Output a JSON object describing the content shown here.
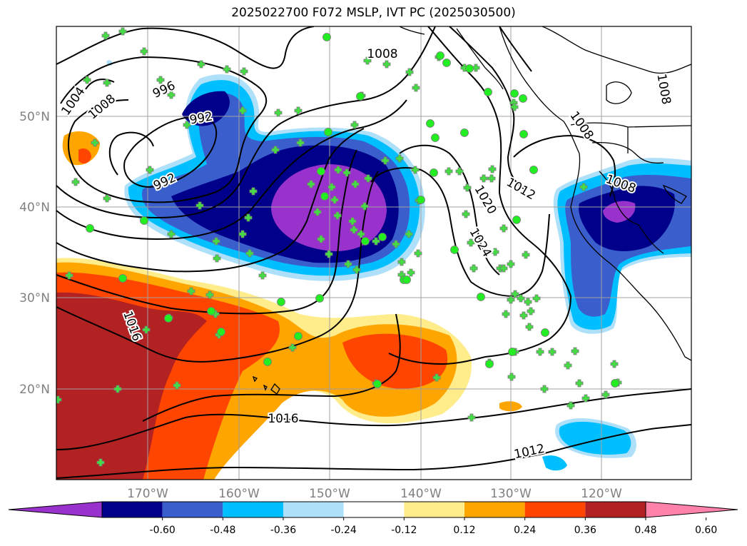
{
  "title": "2025022700 F072 MSLP, IVT PC (2025030500)",
  "map": {
    "lon_labels": [
      "170°W",
      "160°W",
      "150°W",
      "140°W",
      "130°W",
      "120°W"
    ],
    "lat_labels": [
      "50°N",
      "40°N",
      "30°N",
      "20°N"
    ],
    "tick_label_color": "#808080",
    "grid_color": "#a0a0a0"
  },
  "isobars": {
    "labels": [
      {
        "text": "1004"
      },
      {
        "text": "1008"
      },
      {
        "text": "996"
      },
      {
        "text": "992"
      },
      {
        "text": "992"
      },
      {
        "text": "1008"
      },
      {
        "text": "1008"
      },
      {
        "text": "1008"
      },
      {
        "text": "1012"
      },
      {
        "text": "1020"
      },
      {
        "text": "1024"
      },
      {
        "text": "1016"
      },
      {
        "text": "1016"
      },
      {
        "text": "1012"
      },
      {
        "text": "1008"
      }
    ]
  },
  "colorbar": {
    "tick_labels": [
      "-0.60",
      "-0.48",
      "-0.36",
      "-0.24",
      "-0.12",
      "0.12",
      "0.24",
      "0.36",
      "0.48",
      "0.60"
    ],
    "colors": [
      "#9932cc",
      "#00008b",
      "#3a5fcd",
      "#00bfff",
      "#afe0fa",
      "#ffffff",
      "#ffec8b",
      "#ffa500",
      "#ff4500",
      "#b22222",
      "#ff82ab"
    ]
  },
  "markers": {
    "cross_color": "#44dd44",
    "circle_color": "#22ee22"
  }
}
